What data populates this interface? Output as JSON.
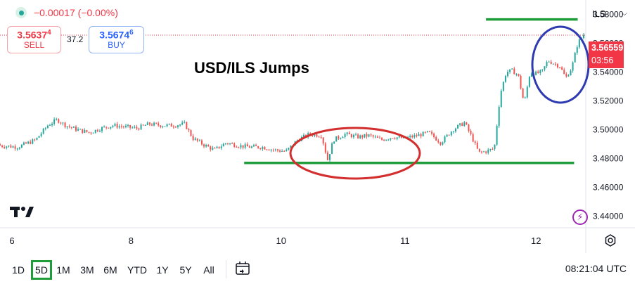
{
  "header": {
    "change": "−0.00017 (−0.00%)",
    "sell": {
      "price_main": "3.5637",
      "price_small": "4",
      "label": "SELL"
    },
    "spread": "37.2",
    "buy": {
      "price_main": "3.5674",
      "price_small": "6",
      "label": "BUY"
    },
    "currency": "ILS"
  },
  "annotation": "USD/ILS Jumps",
  "price_tag": {
    "price": "3.56559",
    "countdown": "03:56"
  },
  "toolbar": {
    "timeframes": [
      "1D",
      "5D",
      "1M",
      "3M",
      "6M",
      "YTD",
      "1Y",
      "5Y",
      "All"
    ],
    "active_timeframe": "5D",
    "clock": "08:21:04 UTC"
  },
  "colors": {
    "up": "#26a69a",
    "down": "#ef5350",
    "support_line": "#1f9d3a",
    "circle_red": "#d32f2f",
    "circle_blue": "#2e3bb0",
    "price_tag": "#f23645"
  },
  "chart_data": {
    "type": "line",
    "style": "candlestick",
    "y_ticks": [
      "3.58000",
      "3.56000",
      "3.54000",
      "3.52000",
      "3.50000",
      "3.48000",
      "3.46000",
      "3.44000"
    ],
    "ylim": [
      3.432,
      3.59
    ],
    "x_ticks": [
      {
        "label": "6",
        "x": 0.0
      },
      {
        "label": "8",
        "x": 1.0
      },
      {
        "label": "10",
        "x": 2.26
      },
      {
        "label": "11",
        "x": 3.3
      },
      {
        "label": "12",
        "x": 4.4
      }
    ],
    "xlim": [
      -0.1,
      4.8
    ],
    "series": [
      {
        "x": [
          -0.1,
          0.05,
          0.2,
          0.3,
          0.38,
          0.45,
          0.55,
          0.65,
          0.75,
          0.85,
          0.95,
          1.05,
          1.15,
          1.25,
          1.35,
          1.45,
          1.52,
          1.6,
          1.7,
          1.8,
          1.9,
          2.0,
          2.1,
          2.2,
          2.3,
          2.4,
          2.5,
          2.6,
          2.65,
          2.7,
          2.8,
          2.9,
          3.0,
          3.1,
          3.2,
          3.3,
          3.4,
          3.5,
          3.6,
          3.7,
          3.8,
          3.86,
          3.92,
          3.98,
          4.05,
          4.1,
          4.15,
          4.2,
          4.25,
          4.3,
          4.35,
          4.4,
          4.45,
          4.5,
          4.55,
          4.6,
          4.65,
          4.7,
          4.75,
          4.8
        ],
        "y": [
          3.489,
          3.488,
          3.493,
          3.503,
          3.507,
          3.503,
          3.5,
          3.498,
          3.501,
          3.503,
          3.502,
          3.501,
          3.504,
          3.503,
          3.503,
          3.504,
          3.494,
          3.49,
          3.486,
          3.491,
          3.489,
          3.488,
          3.488,
          3.486,
          3.485,
          3.493,
          3.497,
          3.496,
          3.479,
          3.493,
          3.497,
          3.495,
          3.496,
          3.493,
          3.495,
          3.494,
          3.496,
          3.498,
          3.491,
          3.5,
          3.505,
          3.495,
          3.484,
          3.485,
          3.487,
          3.525,
          3.54,
          3.541,
          3.538,
          3.518,
          3.54,
          3.539,
          3.54,
          3.548,
          3.546,
          3.544,
          3.536,
          3.543,
          3.56,
          3.566
        ]
      }
    ],
    "support_lines": [
      {
        "y": 3.5765,
        "x_range": [
          3.98,
          4.75
        ]
      },
      {
        "y": 3.477,
        "x_range": [
          1.95,
          4.72
        ]
      }
    ],
    "current_price": 3.56559,
    "grid": false
  }
}
